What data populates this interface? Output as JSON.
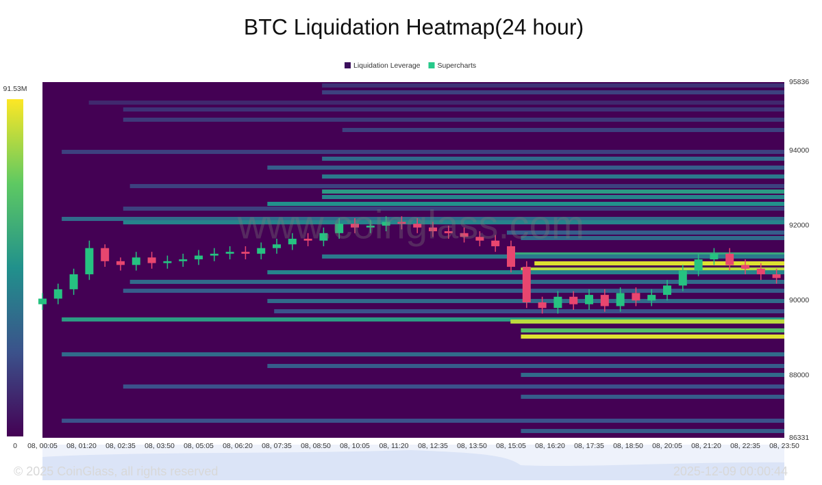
{
  "chart_data": {
    "type": "heatmap",
    "title": "BTC Liquidation Heatmap(24 hour)",
    "watermark": "www.coinglass.com",
    "copyright": "© 2025 CoinGlass, all rights reserved",
    "timestamp": "2025-12-09 00:00:44",
    "legend": [
      {
        "name": "Liquidation Leverage",
        "color": "#3b0f5c"
      },
      {
        "name": "Supercharts",
        "color": "#27c98a"
      }
    ],
    "colormap": [
      "#440154",
      "#3b528b",
      "#21918c",
      "#5ec962",
      "#fde725"
    ],
    "clim": [
      0,
      91530000
    ],
    "colorbar_ticks": [
      0,
      {
        "value": 91530000,
        "label": "91.53M"
      }
    ],
    "xlim": [
      5,
      1430
    ],
    "xticks": [
      {
        "value": 5,
        "label": "08, 00:05"
      },
      {
        "value": 80,
        "label": "08, 01:20"
      },
      {
        "value": 155,
        "label": "08, 02:35"
      },
      {
        "value": 230,
        "label": "08, 03:50"
      },
      {
        "value": 305,
        "label": "08, 05:05"
      },
      {
        "value": 380,
        "label": "08, 06:20"
      },
      {
        "value": 455,
        "label": "08, 07:35"
      },
      {
        "value": 530,
        "label": "08, 08:50"
      },
      {
        "value": 605,
        "label": "08, 10:05"
      },
      {
        "value": 680,
        "label": "08, 11:20"
      },
      {
        "value": 755,
        "label": "08, 12:35"
      },
      {
        "value": 830,
        "label": "08, 13:50"
      },
      {
        "value": 905,
        "label": "08, 15:05"
      },
      {
        "value": 980,
        "label": "08, 16:20"
      },
      {
        "value": 1055,
        "label": "08, 17:35"
      },
      {
        "value": 1130,
        "label": "08, 18:50"
      },
      {
        "value": 1205,
        "label": "08, 20:05"
      },
      {
        "value": 1280,
        "label": "08, 21:20"
      },
      {
        "value": 1355,
        "label": "08, 22:35"
      },
      {
        "value": 1430,
        "label": "08, 23:50"
      }
    ],
    "ylim": [
      86331,
      95836
    ],
    "yticks": [
      86331,
      88000,
      90000,
      92000,
      94000,
      95836
    ],
    "bands": [
      {
        "price": 95745,
        "start": 542,
        "value": 14000000
      },
      {
        "price": 95562,
        "start": 542,
        "value": 18000000
      },
      {
        "price": 95288,
        "start": 94,
        "value": 11000000
      },
      {
        "price": 95105,
        "start": 160,
        "value": 14000000
      },
      {
        "price": 94831,
        "start": 160,
        "value": 16000000
      },
      {
        "price": 94556,
        "start": 581,
        "value": 18000000
      },
      {
        "price": 93971,
        "start": 42,
        "value": 18000000
      },
      {
        "price": 93789,
        "start": 542,
        "value": 32000000
      },
      {
        "price": 93551,
        "start": 437,
        "value": 27000000
      },
      {
        "price": 93313,
        "start": 542,
        "value": 37000000
      },
      {
        "price": 93057,
        "start": 173,
        "value": 18000000
      },
      {
        "price": 92911,
        "start": 542,
        "value": 50000000
      },
      {
        "price": 92765,
        "start": 542,
        "value": 41000000
      },
      {
        "price": 92582,
        "start": 437,
        "value": 46000000
      },
      {
        "price": 92454,
        "start": 160,
        "value": 18000000
      },
      {
        "price": 92180,
        "start": 42,
        "value": 32000000
      },
      {
        "price": 92089,
        "start": 160,
        "value": 41000000
      },
      {
        "price": 91815,
        "start": 897,
        "value": 27000000
      },
      {
        "price": 91669,
        "start": 924,
        "value": 32000000
      },
      {
        "price": 91230,
        "start": 910,
        "value": 55000000
      },
      {
        "price": 91175,
        "start": 542,
        "value": 37000000
      },
      {
        "price": 90992,
        "start": 950,
        "value": 87000000
      },
      {
        "price": 90827,
        "start": 924,
        "value": 82000000
      },
      {
        "price": 90754,
        "start": 437,
        "value": 41000000
      },
      {
        "price": 90498,
        "start": 173,
        "value": 32000000
      },
      {
        "price": 90260,
        "start": 160,
        "value": 27000000
      },
      {
        "price": 89986,
        "start": 437,
        "value": 32000000
      },
      {
        "price": 89712,
        "start": 450,
        "value": 23000000
      },
      {
        "price": 89493,
        "start": 42,
        "value": 50000000
      },
      {
        "price": 89438,
        "start": 904,
        "value": 82000000
      },
      {
        "price": 89200,
        "start": 924,
        "value": 64000000
      },
      {
        "price": 89036,
        "start": 924,
        "value": 87000000
      },
      {
        "price": 88561,
        "start": 42,
        "value": 32000000
      },
      {
        "price": 88250,
        "start": 437,
        "value": 27000000
      },
      {
        "price": 88012,
        "start": 924,
        "value": 32000000
      },
      {
        "price": 87701,
        "start": 160,
        "value": 23000000
      },
      {
        "price": 87427,
        "start": 924,
        "value": 27000000
      },
      {
        "price": 86787,
        "start": 42,
        "value": 23000000
      },
      {
        "price": 86513,
        "start": 924,
        "value": 27000000
      }
    ],
    "candles": {
      "up_color": "#26c281",
      "down_color": "#e8466f",
      "x": [
        5,
        35,
        65,
        95,
        125,
        155,
        185,
        215,
        245,
        275,
        305,
        335,
        365,
        395,
        425,
        455,
        485,
        515,
        545,
        575,
        605,
        635,
        665,
        695,
        725,
        755,
        785,
        815,
        845,
        875,
        905,
        935,
        965,
        995,
        1025,
        1055,
        1085,
        1115,
        1145,
        1175,
        1205,
        1235,
        1265,
        1295,
        1325,
        1355,
        1385,
        1415
      ],
      "open": [
        89900,
        90050,
        90300,
        90700,
        91400,
        91050,
        90950,
        91150,
        91000,
        91050,
        91100,
        91200,
        91250,
        91300,
        91250,
        91400,
        91500,
        91650,
        91600,
        91800,
        92050,
        91950,
        92000,
        92100,
        92050,
        91950,
        91850,
        91800,
        91700,
        91600,
        91450,
        90900,
        89950,
        89800,
        90100,
        89900,
        90150,
        89850,
        90200,
        90000,
        90150,
        90400,
        90800,
        91100,
        91250,
        90950,
        90850,
        90700
      ],
      "high": [
        90200,
        90450,
        90850,
        91600,
        91500,
        91150,
        91300,
        91300,
        91200,
        91250,
        91350,
        91400,
        91450,
        91450,
        91550,
        91650,
        91800,
        91800,
        91950,
        92200,
        92200,
        92150,
        92250,
        92250,
        92200,
        92100,
        92000,
        91950,
        91850,
        91750,
        91600,
        91050,
        90100,
        90250,
        90250,
        90300,
        90300,
        90350,
        90350,
        90300,
        90550,
        90950,
        91250,
        91400,
        91400,
        91100,
        91000,
        90850
      ],
      "low": [
        89750,
        89900,
        90150,
        90550,
        90900,
        90800,
        90800,
        90850,
        90850,
        90900,
        90950,
        91050,
        91100,
        91100,
        91100,
        91250,
        91350,
        91450,
        91450,
        91650,
        91800,
        91800,
        91850,
        91900,
        91800,
        91700,
        91650,
        91550,
        91450,
        91300,
        90750,
        89800,
        89650,
        89650,
        89750,
        89750,
        89700,
        89700,
        89850,
        89850,
        90000,
        90250,
        90650,
        90950,
        90800,
        90700,
        90550,
        90450
      ],
      "close": [
        90050,
        90300,
        90700,
        91400,
        91050,
        90950,
        91150,
        91000,
        91050,
        91100,
        91200,
        91250,
        91300,
        91250,
        91400,
        91500,
        91650,
        91600,
        91800,
        92050,
        91950,
        92000,
        92100,
        92050,
        91950,
        91850,
        91800,
        91700,
        91600,
        91450,
        90900,
        89950,
        89800,
        90100,
        89900,
        90150,
        89850,
        90200,
        90000,
        90150,
        90400,
        90800,
        91100,
        91250,
        90950,
        90850,
        90700,
        90600
      ]
    }
  }
}
